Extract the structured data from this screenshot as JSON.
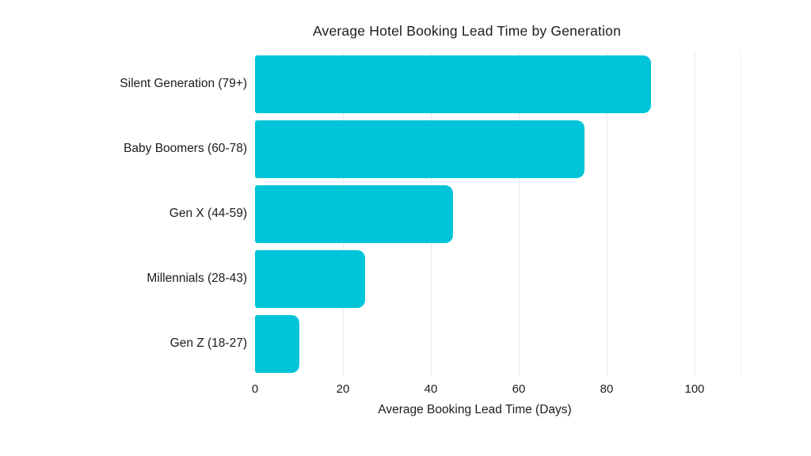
{
  "chart_data": {
    "type": "bar",
    "orientation": "horizontal",
    "title": "Average Hotel Booking Lead Time by Generation",
    "categories": [
      "Silent Generation (79+)",
      "Baby Boomers (60-78)",
      "Gen X (44-59)",
      "Millennials (28-43)",
      "Gen Z (18-27)"
    ],
    "values": [
      90,
      75,
      45,
      25,
      10
    ],
    "xlabel": "Average Booking Lead Time (Days)",
    "ylabel": "",
    "xticks": [
      0,
      20,
      40,
      60,
      80,
      100
    ],
    "xlim": [
      0,
      110
    ],
    "grid": true,
    "legend": false,
    "colors": {
      "bar": "#00c4d7",
      "grid": "#e9e9e9",
      "panel_edge": "#f3f3f3",
      "text": "#1c1c1c",
      "background": "#ffffff"
    }
  }
}
